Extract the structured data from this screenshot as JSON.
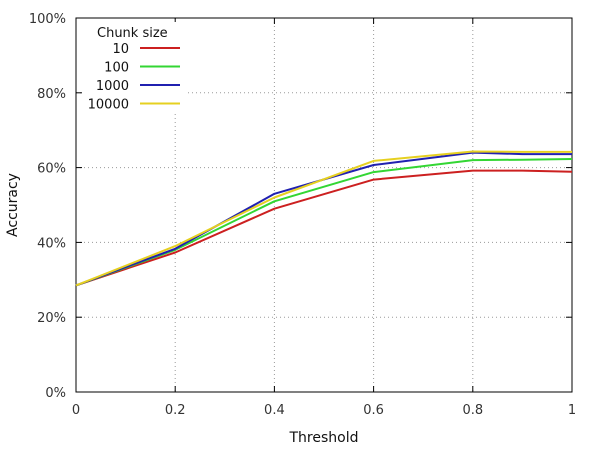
{
  "chart_data": {
    "type": "line",
    "xlabel": "Threshold",
    "ylabel": "Accuracy",
    "xlim": [
      0,
      1
    ],
    "ylim": [
      0,
      100
    ],
    "x_ticks": [
      "0",
      "0.2",
      "0.4",
      "0.6",
      "0.8",
      "1"
    ],
    "y_ticks": [
      "0%",
      "20%",
      "40%",
      "60%",
      "80%",
      "100%"
    ],
    "grid": "dotted",
    "legend": {
      "title": "Chunk size",
      "position": "top-left"
    },
    "x": [
      0,
      0.2,
      0.4,
      0.6,
      0.8,
      0.9,
      1.0
    ],
    "series": [
      {
        "name": "10",
        "color": "#cc2020",
        "values": [
          28.5,
          37.3,
          49.0,
          56.8,
          59.2,
          59.2,
          58.9
        ]
      },
      {
        "name": "100",
        "color": "#33d633",
        "values": [
          28.5,
          38.0,
          51.0,
          58.8,
          62.0,
          62.1,
          62.3
        ]
      },
      {
        "name": "1000",
        "color": "#2020b0",
        "values": [
          28.5,
          38.3,
          53.0,
          60.7,
          64.0,
          63.6,
          63.6
        ]
      },
      {
        "name": "10000",
        "color": "#e6d020",
        "values": [
          28.5,
          39.0,
          52.0,
          61.8,
          64.3,
          64.2,
          64.2
        ]
      }
    ]
  }
}
